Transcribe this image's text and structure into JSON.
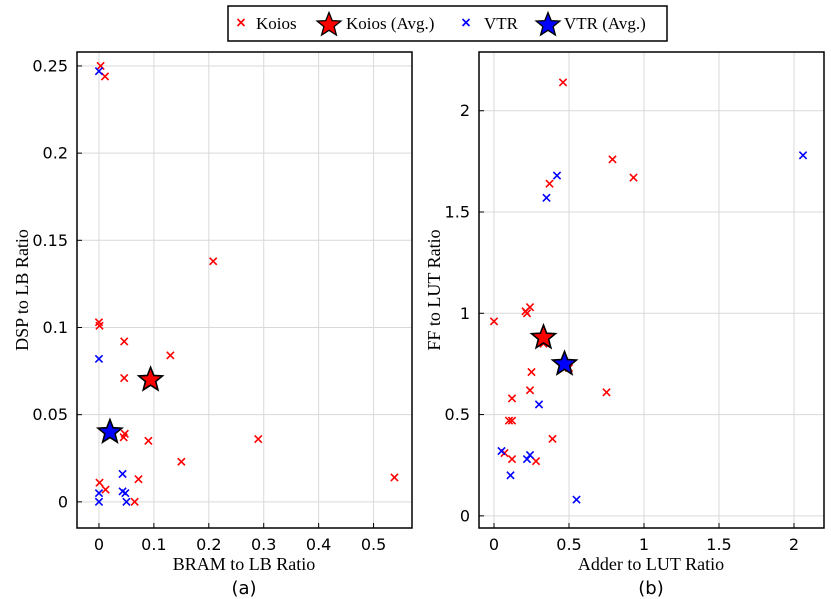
{
  "legend": {
    "items": [
      {
        "label": "Koios",
        "marker": "x",
        "color": "#ff0000"
      },
      {
        "label": "Koios (Avg.)",
        "marker": "star",
        "color": "#ff0000"
      },
      {
        "label": "VTR",
        "marker": "x",
        "color": "#0000ff"
      },
      {
        "label": "VTR (Avg.)",
        "marker": "star",
        "color": "#0000ff"
      }
    ]
  },
  "colors": {
    "koios": "#ff0000",
    "vtr": "#0000ff",
    "grid": "#d9d9d9",
    "axis": "#000000"
  },
  "chart_data": [
    {
      "type": "scatter",
      "panel_label": "(a)",
      "xlabel": "BRAM  to LB Ratio",
      "ylabel": "DSP to LB Ratio",
      "xlim": [
        -0.04,
        0.57
      ],
      "ylim": [
        -0.015,
        0.258
      ],
      "xticks": [
        0,
        0.1,
        0.2,
        0.3,
        0.4,
        0.5
      ],
      "xtick_labels": [
        "0",
        "0.1",
        "0.2",
        "0.3",
        "0.4",
        "0.5"
      ],
      "yticks": [
        0,
        0.05,
        0.1,
        0.15,
        0.2,
        0.25
      ],
      "ytick_labels": [
        "0",
        "0.05",
        "0.1",
        "0.15",
        "0.2",
        "0.25"
      ],
      "grid": true,
      "series": [
        {
          "name": "Koios",
          "marker": "x",
          "color": "#ff0000",
          "points": [
            [
              0.003,
              0.25
            ],
            [
              0.011,
              0.244
            ],
            [
              0.0,
              0.103
            ],
            [
              0.001,
              0.101
            ],
            [
              0.046,
              0.092
            ],
            [
              0.046,
              0.071
            ],
            [
              0.208,
              0.138
            ],
            [
              0.13,
              0.084
            ],
            [
              0.047,
              0.039
            ],
            [
              0.045,
              0.037
            ],
            [
              0.09,
              0.035
            ],
            [
              0.29,
              0.036
            ],
            [
              0.15,
              0.023
            ],
            [
              0.001,
              0.011
            ],
            [
              0.012,
              0.007
            ],
            [
              0.072,
              0.013
            ],
            [
              0.065,
              0.0
            ],
            [
              0.538,
              0.014
            ]
          ]
        },
        {
          "name": "Koios (Avg.)",
          "marker": "star",
          "color": "#ff0000",
          "points": [
            [
              0.094,
              0.07
            ]
          ]
        },
        {
          "name": "VTR",
          "marker": "x",
          "color": "#0000ff",
          "points": [
            [
              0.0,
              0.247
            ],
            [
              0.0,
              0.082
            ],
            [
              0.043,
              0.016
            ],
            [
              0.043,
              0.006
            ],
            [
              0.048,
              0.005
            ],
            [
              0.0,
              0.005
            ],
            [
              0.0,
              0.0
            ],
            [
              0.05,
              0.0
            ]
          ]
        },
        {
          "name": "VTR (Avg.)",
          "marker": "star",
          "color": "#0000ff",
          "points": [
            [
              0.02,
              0.04
            ]
          ]
        }
      ]
    },
    {
      "type": "scatter",
      "panel_label": "(b)",
      "xlabel": "Adder to LUT Ratio",
      "ylabel": "FF to LUT Ratio",
      "xlim": [
        -0.1,
        2.2
      ],
      "ylim": [
        -0.06,
        2.29
      ],
      "xticks": [
        0,
        0.5,
        1,
        1.5,
        2
      ],
      "xtick_labels": [
        "0",
        "0.5",
        "1",
        "1.5",
        "2"
      ],
      "yticks": [
        0,
        0.5,
        1,
        1.5,
        2
      ],
      "ytick_labels": [
        "0",
        "0.5",
        "1",
        "1.5",
        "2"
      ],
      "grid": true,
      "series": [
        {
          "name": "Koios",
          "marker": "x",
          "color": "#ff0000",
          "points": [
            [
              0.46,
              2.14
            ],
            [
              0.79,
              1.76
            ],
            [
              0.93,
              1.67
            ],
            [
              0.37,
              1.64
            ],
            [
              0.0,
              0.96
            ],
            [
              0.22,
              1.0
            ],
            [
              0.24,
              1.03
            ],
            [
              0.21,
              1.01
            ],
            [
              0.33,
              0.85
            ],
            [
              0.5,
              0.73
            ],
            [
              0.25,
              0.71
            ],
            [
              0.24,
              0.62
            ],
            [
              0.75,
              0.61
            ],
            [
              0.12,
              0.58
            ],
            [
              0.1,
              0.47
            ],
            [
              0.12,
              0.47
            ],
            [
              0.39,
              0.38
            ],
            [
              0.07,
              0.31
            ],
            [
              0.12,
              0.28
            ],
            [
              0.28,
              0.27
            ]
          ]
        },
        {
          "name": "Koios (Avg.)",
          "marker": "star",
          "color": "#ff0000",
          "points": [
            [
              0.33,
              0.88
            ]
          ]
        },
        {
          "name": "VTR",
          "marker": "x",
          "color": "#0000ff",
          "points": [
            [
              2.06,
              1.78
            ],
            [
              0.42,
              1.68
            ],
            [
              0.35,
              1.57
            ],
            [
              0.3,
              0.55
            ],
            [
              0.05,
              0.32
            ],
            [
              0.24,
              0.3
            ],
            [
              0.22,
              0.28
            ],
            [
              0.11,
              0.2
            ],
            [
              0.55,
              0.08
            ]
          ]
        },
        {
          "name": "VTR (Avg.)",
          "marker": "star",
          "color": "#0000ff",
          "points": [
            [
              0.47,
              0.75
            ]
          ]
        }
      ]
    }
  ]
}
